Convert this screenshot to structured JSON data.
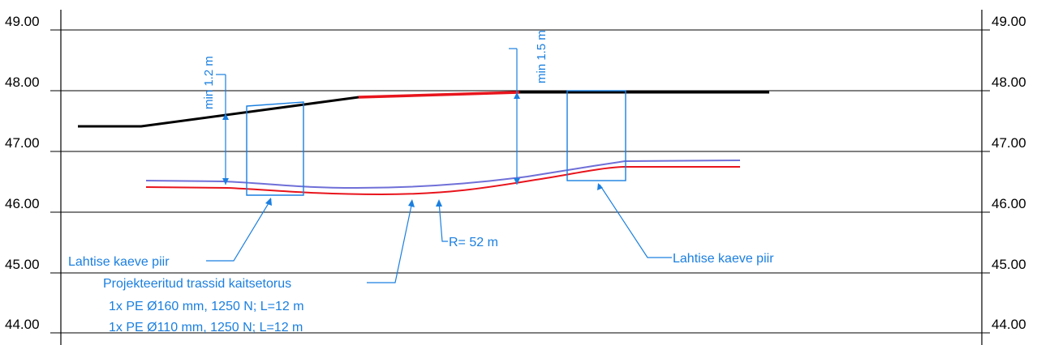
{
  "levels": {
    "left": [
      "49.00",
      "48.00",
      "47.00",
      "46.00",
      "45.00",
      "44.00"
    ],
    "right": [
      "49.00",
      "48.00",
      "47.00",
      "46.00",
      "45.00",
      "44.00"
    ]
  },
  "dimensions": {
    "min_left": "min 1.2 m",
    "min_right": "min 1.5 m"
  },
  "labels": {
    "radius": "R= 52 m",
    "open_trench_left": "Lahtise kaeve piir",
    "open_trench_right": "Lahtise kaeve piir",
    "designed_routes": "Projekteeritud trassid kaitsetorus",
    "pipe_1": "1x PE Ø160 mm, 1250 N; L=12 m",
    "pipe_2": "1x PE Ø110 mm, 1250 N; L=12 m"
  },
  "colors": {
    "ground": "#000000",
    "ground_highlight": "#e8141c",
    "pipe_red": "#e8141c",
    "pipe_purple": "#6f6fd8",
    "annotation": "#1a7fe0"
  }
}
